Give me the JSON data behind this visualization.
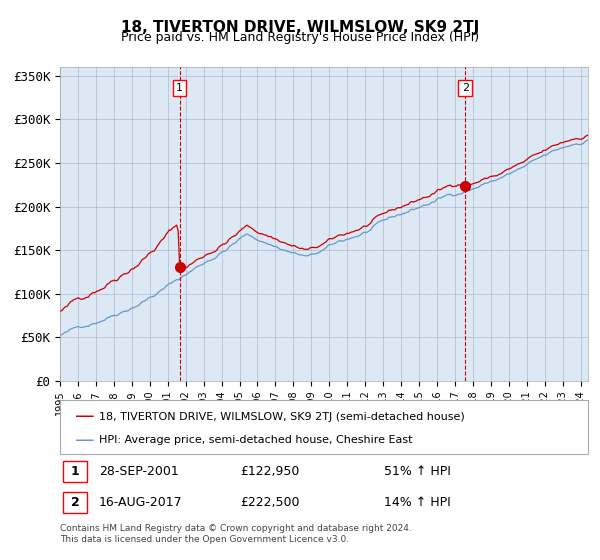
{
  "title": "18, TIVERTON DRIVE, WILMSLOW, SK9 2TJ",
  "subtitle": "Price paid vs. HM Land Registry's House Price Index (HPI)",
  "bg_color": "#dce9f5",
  "plot_bg_color": "#dce9f5",
  "red_line_color": "#cc0000",
  "blue_line_color": "#6699cc",
  "marker_color": "#cc0000",
  "vline_color": "#cc0000",
  "grid_color": "#aaaacc",
  "legend_label_red": "18, TIVERTON DRIVE, WILMSLOW, SK9 2TJ (semi-detached house)",
  "legend_label_blue": "HPI: Average price, semi-detached house, Cheshire East",
  "annotation1_label": "1",
  "annotation1_date": "28-SEP-2001",
  "annotation1_price": "£122,950",
  "annotation1_hpi": "51% ↑ HPI",
  "annotation2_label": "2",
  "annotation2_date": "16-AUG-2017",
  "annotation2_price": "£222,500",
  "annotation2_hpi": "14% ↑ HPI",
  "footer": "Contains HM Land Registry data © Crown copyright and database right 2024.\nThis data is licensed under the Open Government Licence v3.0.",
  "ylim": [
    0,
    360000
  ],
  "yticks": [
    0,
    50000,
    100000,
    150000,
    200000,
    250000,
    300000,
    350000
  ],
  "ytick_labels": [
    "£0",
    "£50K",
    "£100K",
    "£150K",
    "£200K",
    "£250K",
    "£300K",
    "£350K"
  ]
}
